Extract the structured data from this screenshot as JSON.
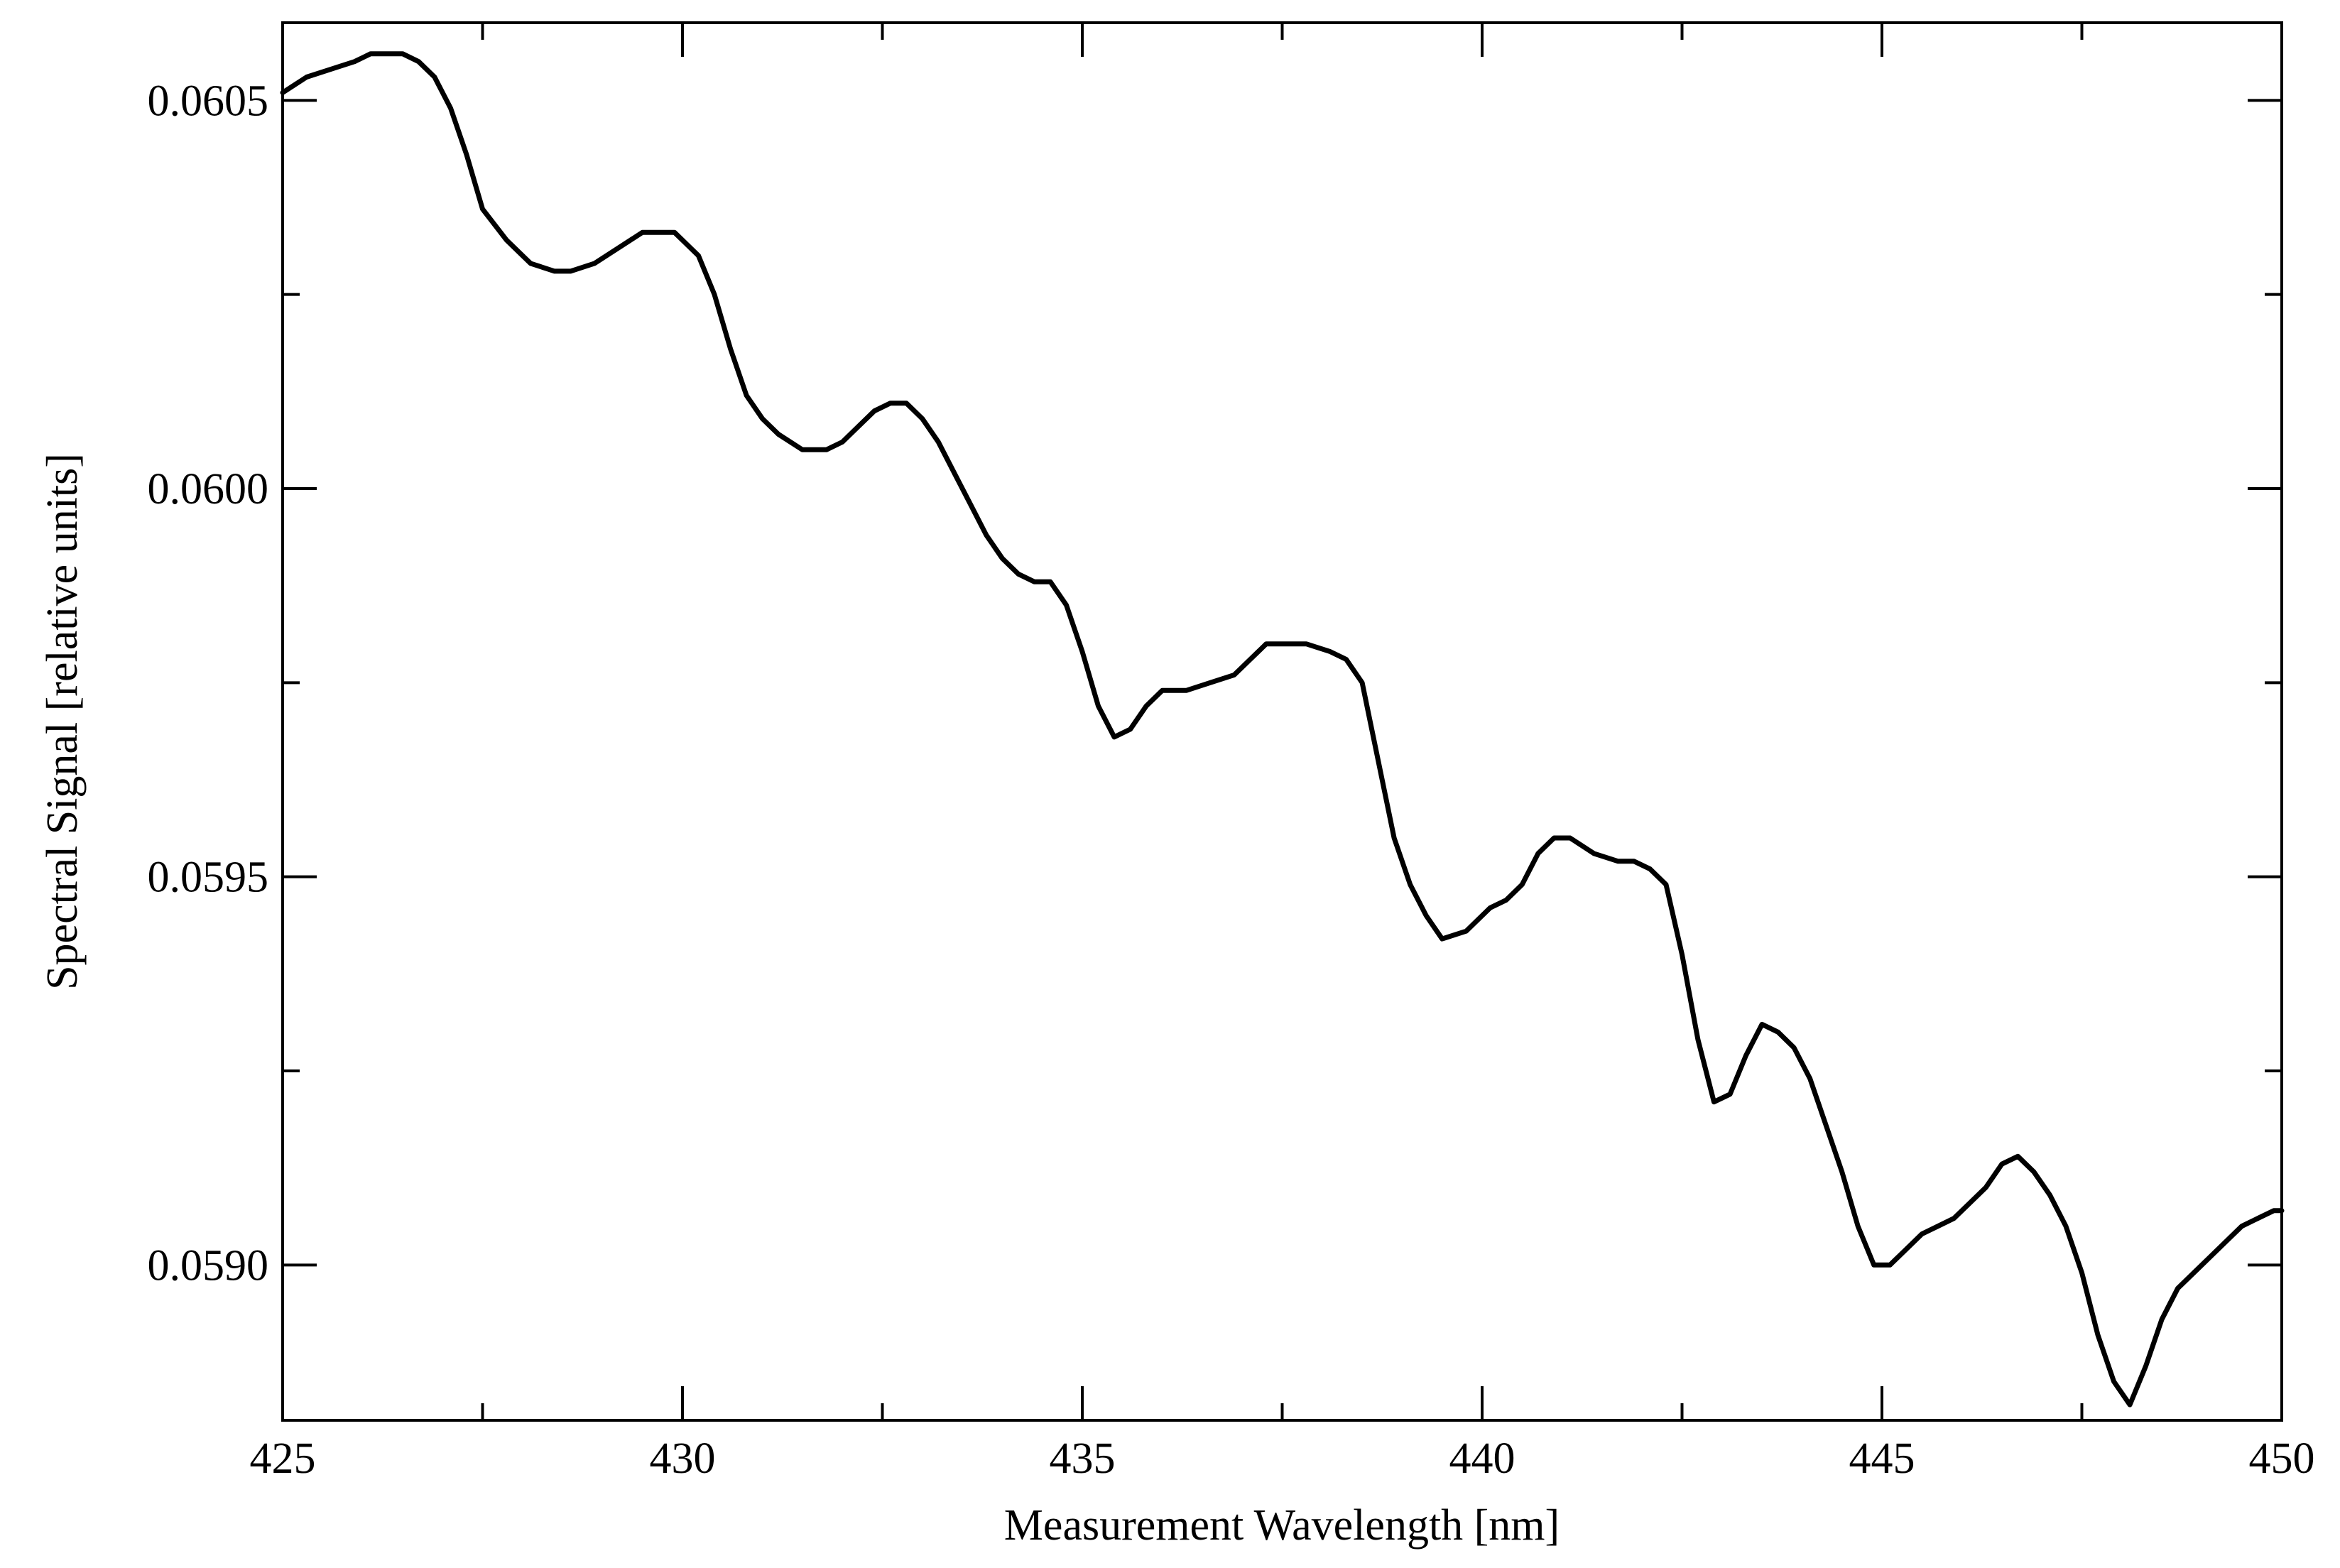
{
  "chart_data": {
    "type": "line",
    "xlabel": "Measurement Wavelength [nm]",
    "ylabel": "Spectral Signal [relative units]",
    "xlim": [
      425,
      450
    ],
    "ylim": [
      0.0588,
      0.0606
    ],
    "x_ticks": [
      425,
      430,
      435,
      440,
      445,
      450
    ],
    "x_tick_labels": [
      "425",
      "430",
      "435",
      "440",
      "445",
      "450"
    ],
    "y_ticks": [
      0.059,
      0.0595,
      0.06,
      0.0605
    ],
    "y_tick_labels": [
      "0.0590",
      "0.0595",
      "0.0600",
      "0.0605"
    ],
    "grid": false,
    "legend": "none",
    "line_color": "#000000",
    "series": [
      {
        "x": [
          425.0,
          425.3,
          425.6,
          425.9,
          426.1,
          426.3,
          426.5,
          426.7,
          426.9,
          427.1,
          427.3,
          427.5,
          427.8,
          428.1,
          428.4,
          428.6,
          428.9,
          429.2,
          429.5,
          429.7,
          429.9,
          430.0,
          430.2,
          430.4,
          430.6,
          430.8,
          431.0,
          431.2,
          431.5,
          431.8,
          432.0,
          432.2,
          432.4,
          432.6,
          432.8,
          433.0,
          433.2,
          433.4,
          433.6,
          433.8,
          434.0,
          434.2,
          434.4,
          434.6,
          434.8,
          435.0,
          435.2,
          435.4,
          435.6,
          435.8,
          436.0,
          436.3,
          436.6,
          436.9,
          437.1,
          437.3,
          437.5,
          437.8,
          438.1,
          438.3,
          438.5,
          438.7,
          438.9,
          439.1,
          439.3,
          439.5,
          439.8,
          440.1,
          440.3,
          440.5,
          440.7,
          440.9,
          441.1,
          441.4,
          441.7,
          441.9,
          442.1,
          442.3,
          442.5,
          442.7,
          442.9,
          443.1,
          443.3,
          443.5,
          443.7,
          443.9,
          444.1,
          444.3,
          444.5,
          444.7,
          444.9,
          445.1,
          445.3,
          445.5,
          445.7,
          445.9,
          446.1,
          446.3,
          446.5,
          446.7,
          446.9,
          447.1,
          447.3,
          447.5,
          447.7,
          447.9,
          448.1,
          448.3,
          448.5,
          448.7,
          448.9,
          449.1,
          449.3,
          449.5,
          449.7,
          449.9,
          450.0
        ],
        "y": [
          0.06051,
          0.06053,
          0.06054,
          0.06055,
          0.06056,
          0.06056,
          0.06056,
          0.06055,
          0.06053,
          0.06049,
          0.06043,
          0.06036,
          0.06032,
          0.06029,
          0.06028,
          0.06028,
          0.06029,
          0.06031,
          0.06033,
          0.06033,
          0.06033,
          0.06032,
          0.0603,
          0.06025,
          0.06018,
          0.06012,
          0.06009,
          0.06007,
          0.06005,
          0.06005,
          0.06006,
          0.06008,
          0.0601,
          0.06011,
          0.06011,
          0.06009,
          0.06006,
          0.06002,
          0.05998,
          0.05994,
          0.05991,
          0.05989,
          0.05988,
          0.05988,
          0.05985,
          0.05979,
          0.05972,
          0.05968,
          0.05969,
          0.05972,
          0.05974,
          0.05974,
          0.05975,
          0.05976,
          0.05978,
          0.0598,
          0.0598,
          0.0598,
          0.05979,
          0.05978,
          0.05975,
          0.05965,
          0.05955,
          0.05949,
          0.05945,
          0.05942,
          0.05943,
          0.05946,
          0.05947,
          0.05949,
          0.05953,
          0.05955,
          0.05955,
          0.05953,
          0.05952,
          0.05952,
          0.05951,
          0.05949,
          0.0594,
          0.05929,
          0.05921,
          0.05922,
          0.05927,
          0.05931,
          0.0593,
          0.05928,
          0.05924,
          0.05918,
          0.05912,
          0.05905,
          0.059,
          0.059,
          0.05902,
          0.05904,
          0.05905,
          0.05906,
          0.05908,
          0.0591,
          0.05913,
          0.05914,
          0.05912,
          0.05909,
          0.05905,
          0.05899,
          0.05891,
          0.05885,
          0.05882,
          0.05887,
          0.05893,
          0.05897,
          0.05899,
          0.05901,
          0.05903,
          0.05905,
          0.05906,
          0.05907,
          0.05907
        ]
      }
    ]
  }
}
